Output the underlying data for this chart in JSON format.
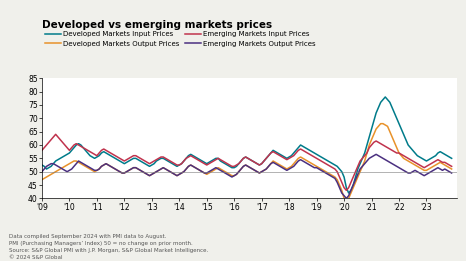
{
  "title": "Developed vs emerging markets prices",
  "colors": {
    "dev_input": "#007b8a",
    "dev_output": "#e8922a",
    "em_input": "#c0334d",
    "em_output": "#4b3080"
  },
  "legend_labels": [
    "Developed Markets Input Prices",
    "Developed Markets Output Prices",
    "Emerging Markets Input Prices",
    "Emerging Markets Output Prices"
  ],
  "ylim": [
    40,
    85
  ],
  "yticks": [
    40,
    45,
    50,
    55,
    60,
    65,
    70,
    75,
    80,
    85
  ],
  "hline_y": 50,
  "footnotes": [
    "Data compiled September 2024 with PMI data to August.",
    "PMI (Purchasing Managers’ Index) 50 = no change on prior month.",
    "Source: S&P Global PMI with J.P. Morgan, S&P Global Market Intelligence.",
    "© 2024 S&P Global"
  ],
  "background_color": "#f0f0eb",
  "plot_bg_color": "#ffffff",
  "xtick_years": [
    2009,
    2010,
    2011,
    2012,
    2013,
    2014,
    2015,
    2016,
    2017,
    2018,
    2019,
    2020,
    2021,
    2022,
    2023
  ],
  "xtick_labels": [
    "'09",
    "'10",
    "'11",
    "'12",
    "'13",
    "'14",
    "'15",
    "'16",
    "'17",
    "'18",
    "'19",
    "'20",
    "'21",
    "'22",
    "'23"
  ],
  "dev_input": [
    52.5,
    52,
    51,
    51.5,
    52,
    53,
    54,
    54.5,
    55,
    55.5,
    56,
    56.5,
    57,
    58,
    59,
    60,
    60.5,
    60,
    59,
    58,
    57,
    56,
    55.5,
    55,
    55.5,
    56,
    57,
    57.5,
    57,
    56.5,
    56,
    55.5,
    55,
    54.5,
    54,
    53.5,
    53,
    53.5,
    54,
    54.5,
    55,
    55,
    54.5,
    54,
    53.5,
    53,
    52.5,
    52,
    52.5,
    53,
    54,
    54.5,
    55,
    55,
    54.5,
    54,
    53.5,
    53,
    52.5,
    52,
    52.5,
    53,
    54,
    55,
    56,
    56.5,
    56,
    55.5,
    55,
    54.5,
    54,
    53.5,
    53,
    53.5,
    54,
    54.5,
    55,
    55,
    54,
    53.5,
    53,
    52.5,
    52,
    51.5,
    51.5,
    52,
    53,
    54,
    55,
    55.5,
    55,
    54.5,
    54,
    53.5,
    53,
    52.5,
    53,
    54,
    55,
    56,
    57,
    58,
    57.5,
    57,
    56.5,
    56,
    55.5,
    55,
    55.5,
    56,
    57,
    58,
    59,
    60,
    59.5,
    59,
    58.5,
    58,
    57.5,
    57,
    56.5,
    56,
    55.5,
    55,
    54.5,
    54,
    53.5,
    53,
    52.5,
    52,
    51,
    50,
    48,
    44,
    42,
    43,
    45,
    48,
    51,
    53,
    55,
    57,
    60,
    63,
    66,
    69,
    72,
    74,
    76,
    77,
    78,
    77,
    76,
    74,
    72,
    70,
    68,
    66,
    64,
    62,
    60,
    59,
    58,
    57,
    56,
    55.5,
    55,
    54.5,
    54,
    54.5,
    55,
    55.5,
    56,
    57,
    57.5,
    57,
    56.5,
    56,
    55.5,
    55
  ],
  "dev_output": [
    47,
    47.5,
    48,
    48.5,
    49,
    49.5,
    50,
    50.5,
    51,
    51.5,
    52,
    52.5,
    53,
    53.5,
    54,
    54,
    53.5,
    53,
    52.5,
    52,
    51.5,
    51,
    50.5,
    50,
    50.5,
    51,
    52,
    52.5,
    53,
    52.5,
    52,
    51.5,
    51,
    50.5,
    50,
    49.5,
    49.5,
    50,
    50.5,
    51,
    51.5,
    51.5,
    51,
    50.5,
    50,
    49.5,
    49,
    48.5,
    49,
    49.5,
    50,
    50.5,
    51,
    51.5,
    51,
    50.5,
    50,
    49.5,
    49,
    48.5,
    49,
    49.5,
    50,
    51,
    52,
    52.5,
    52,
    51.5,
    51,
    50.5,
    50,
    49.5,
    49,
    49.5,
    50,
    50.5,
    51,
    51.5,
    51,
    50.5,
    50,
    49.5,
    49,
    48.5,
    48.5,
    49,
    50,
    51,
    52,
    52.5,
    52,
    51.5,
    51,
    50.5,
    50,
    49.5,
    50,
    50.5,
    51,
    52,
    53,
    54,
    53.5,
    53,
    52.5,
    52,
    51.5,
    51,
    51.5,
    52,
    53,
    54,
    55,
    55.5,
    55,
    54.5,
    54,
    53.5,
    53,
    52.5,
    52,
    51.5,
    51,
    50.5,
    50,
    49.5,
    49,
    48.5,
    48,
    47,
    45,
    43,
    40,
    38,
    40,
    42,
    44,
    46,
    48,
    50,
    52,
    54,
    57,
    60,
    62,
    64,
    66,
    67,
    68,
    68,
    67.5,
    67,
    65,
    63,
    61,
    59,
    57,
    56,
    55,
    54.5,
    54,
    53.5,
    53,
    52.5,
    52,
    51.5,
    51,
    50.5,
    50.5,
    51,
    51.5,
    52,
    52.5,
    53,
    53.5,
    53,
    52.5,
    52,
    51.5,
    51
  ],
  "em_input": [
    58,
    59,
    60,
    61,
    62,
    63,
    64,
    63,
    62,
    61,
    60,
    59,
    58,
    59,
    60,
    60.5,
    60,
    59.5,
    59,
    58.5,
    58,
    57.5,
    57,
    56.5,
    56,
    57,
    58,
    58.5,
    58,
    57.5,
    57,
    56.5,
    56,
    55.5,
    55,
    54.5,
    54,
    54.5,
    55,
    55.5,
    56,
    56,
    55.5,
    55,
    54.5,
    54,
    53.5,
    53,
    53.5,
    54,
    54.5,
    55,
    55.5,
    55.5,
    55,
    54.5,
    54,
    53.5,
    53,
    52.5,
    52.5,
    53,
    54,
    55,
    55.5,
    56,
    55.5,
    55,
    54.5,
    54,
    53.5,
    53,
    52.5,
    53,
    53.5,
    54,
    54.5,
    55,
    54.5,
    54,
    53.5,
    53,
    52.5,
    52,
    52,
    52.5,
    53,
    54,
    55,
    55.5,
    55,
    54.5,
    54,
    53.5,
    53,
    52.5,
    53,
    54,
    55,
    56,
    57,
    57.5,
    57,
    56.5,
    56,
    55.5,
    55,
    54.5,
    55,
    55.5,
    56,
    57,
    58,
    58.5,
    58,
    57.5,
    57,
    56.5,
    56,
    55.5,
    55,
    54.5,
    54,
    53.5,
    53,
    52.5,
    52,
    51.5,
    51,
    50,
    48,
    46,
    44,
    43,
    44,
    46,
    48,
    50,
    52,
    54,
    55,
    56,
    57,
    59,
    60,
    61,
    61.5,
    61,
    60.5,
    60,
    59.5,
    59,
    58.5,
    58,
    57.5,
    57,
    57,
    56.5,
    56,
    55.5,
    55,
    54.5,
    54,
    53.5,
    53,
    52.5,
    52,
    51.5,
    52,
    52.5,
    53,
    53.5,
    54,
    54.5,
    54,
    53.5,
    53.5,
    53,
    52.5,
    52
  ],
  "em_output": [
    50,
    51,
    52,
    52.5,
    53,
    53,
    52.5,
    52,
    51.5,
    51,
    50.5,
    50,
    50.5,
    51,
    52,
    53,
    54,
    53.5,
    53,
    52.5,
    52,
    51.5,
    51,
    50.5,
    50.5,
    51,
    52,
    52.5,
    53,
    52.5,
    52,
    51.5,
    51,
    50.5,
    50,
    49.5,
    49.5,
    50,
    50.5,
    51,
    51.5,
    51.5,
    51,
    50.5,
    50,
    49.5,
    49,
    48.5,
    49,
    49.5,
    50,
    50.5,
    51,
    51.5,
    51,
    50.5,
    50,
    49.5,
    49,
    48.5,
    49,
    49.5,
    50,
    51,
    52,
    52.5,
    52,
    51.5,
    51,
    50.5,
    50,
    49.5,
    49.5,
    50,
    50.5,
    51,
    51.5,
    51,
    50.5,
    50,
    49.5,
    49,
    48.5,
    48,
    48.5,
    49,
    50,
    51,
    52,
    52.5,
    52,
    51.5,
    51,
    50.5,
    50,
    49.5,
    50,
    50.5,
    51,
    52,
    53,
    53.5,
    53,
    52.5,
    52,
    51.5,
    51,
    50.5,
    51,
    51.5,
    52,
    53,
    54,
    54.5,
    54,
    53.5,
    53,
    52.5,
    52,
    51.5,
    51.5,
    51,
    50.5,
    50,
    49.5,
    49,
    48.5,
    48,
    47.5,
    46,
    44,
    42,
    41,
    40,
    41,
    43,
    45,
    47,
    49,
    51,
    52,
    53,
    54,
    55,
    55.5,
    56,
    56.5,
    56,
    55.5,
    55,
    54.5,
    54,
    53.5,
    53,
    52.5,
    52,
    51.5,
    51,
    50.5,
    50,
    49.5,
    49.5,
    50,
    50.5,
    50,
    49.5,
    49,
    48.5,
    49,
    49.5,
    50,
    50.5,
    51,
    51.5,
    51,
    50.5,
    51,
    50.5,
    50,
    49.5
  ]
}
